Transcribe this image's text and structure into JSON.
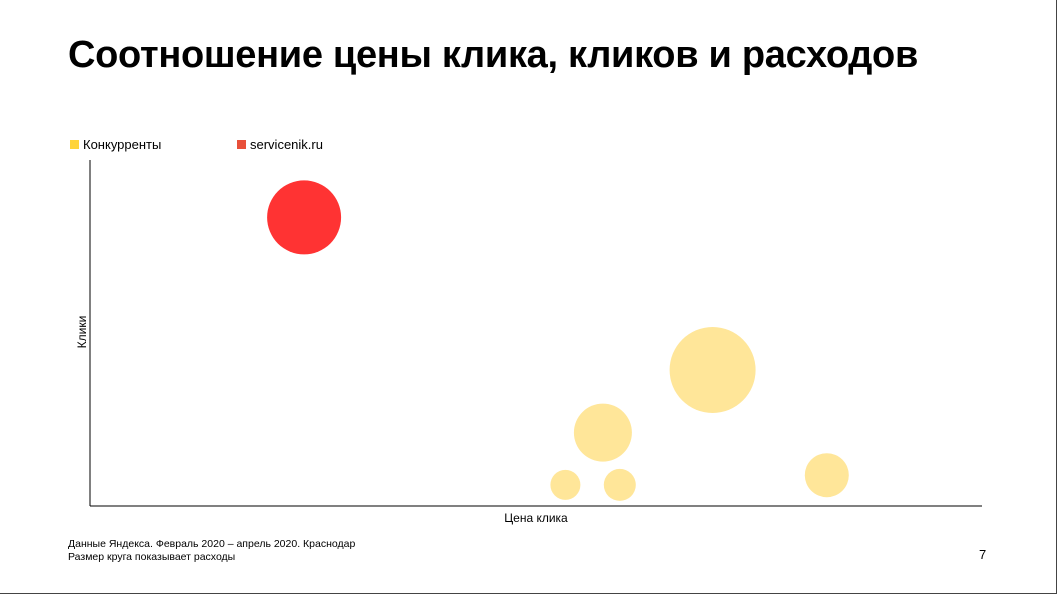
{
  "slide": {
    "title": "Соотношение цены клика, кликов и расходов",
    "footnote_line1": "Данные Яндекса. Февраль 2020 – апрель 2020. Краснодар",
    "footnote_line2": "Размер круга показывает расходы",
    "page_number": "7"
  },
  "chart_data": {
    "type": "scatter",
    "title": "Соотношение цены клика, кликов и расходов",
    "xlabel": "Цена клика",
    "ylabel": "Клики",
    "xlim": [
      0,
      100
    ],
    "ylim": [
      0,
      100
    ],
    "grid": false,
    "axis_ticks_shown": false,
    "legend_placement": "top-left",
    "size_encodes": "Размер круга показывает расходы",
    "series": [
      {
        "name": "Конкурренты",
        "color": "#FFE699",
        "points": [
          {
            "x": 53.3,
            "y": 6.1,
            "size": 15
          },
          {
            "x": 59.4,
            "y": 6.1,
            "size": 16
          },
          {
            "x": 57.5,
            "y": 21.2,
            "size": 29
          },
          {
            "x": 69.8,
            "y": 39.3,
            "size": 43
          },
          {
            "x": 82.6,
            "y": 8.9,
            "size": 22
          }
        ]
      },
      {
        "name": "servicenik.ru",
        "color": "#FF3333",
        "points": [
          {
            "x": 24.0,
            "y": 83.4,
            "size": 37
          }
        ]
      }
    ]
  }
}
